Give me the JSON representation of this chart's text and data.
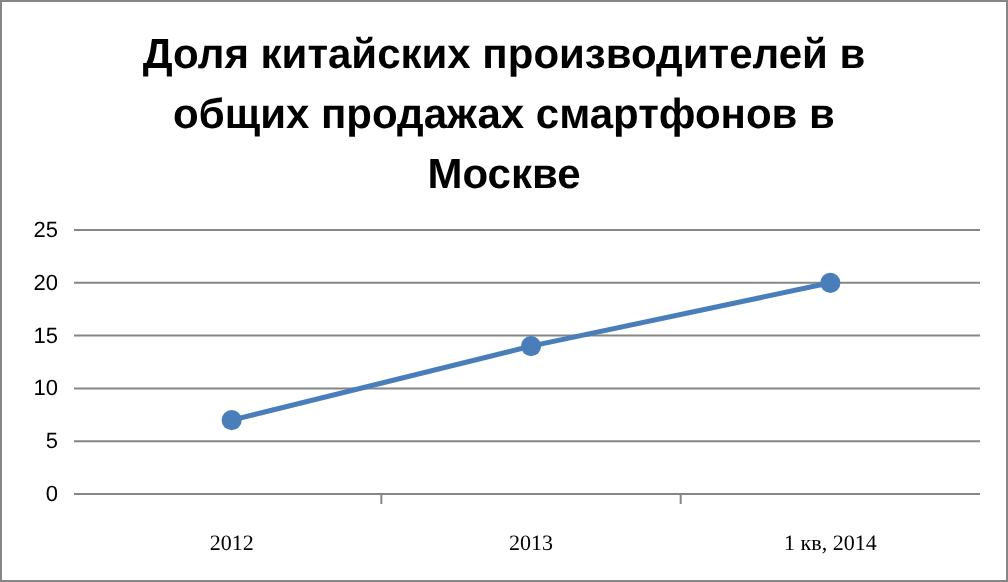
{
  "chart_data": {
    "type": "line",
    "title": "Доля китайских производителей в общих продажах смартфонов в Москве",
    "categories": [
      "2012",
      "2013",
      "1 кв, 2014"
    ],
    "series": [
      {
        "color": "#4a7ebb",
        "values": [
          7,
          14,
          20
        ]
      }
    ],
    "ylim": [
      0,
      25
    ],
    "yticks": [
      0,
      5,
      10,
      15,
      20,
      25
    ],
    "grid": "y",
    "marker": "circle"
  }
}
